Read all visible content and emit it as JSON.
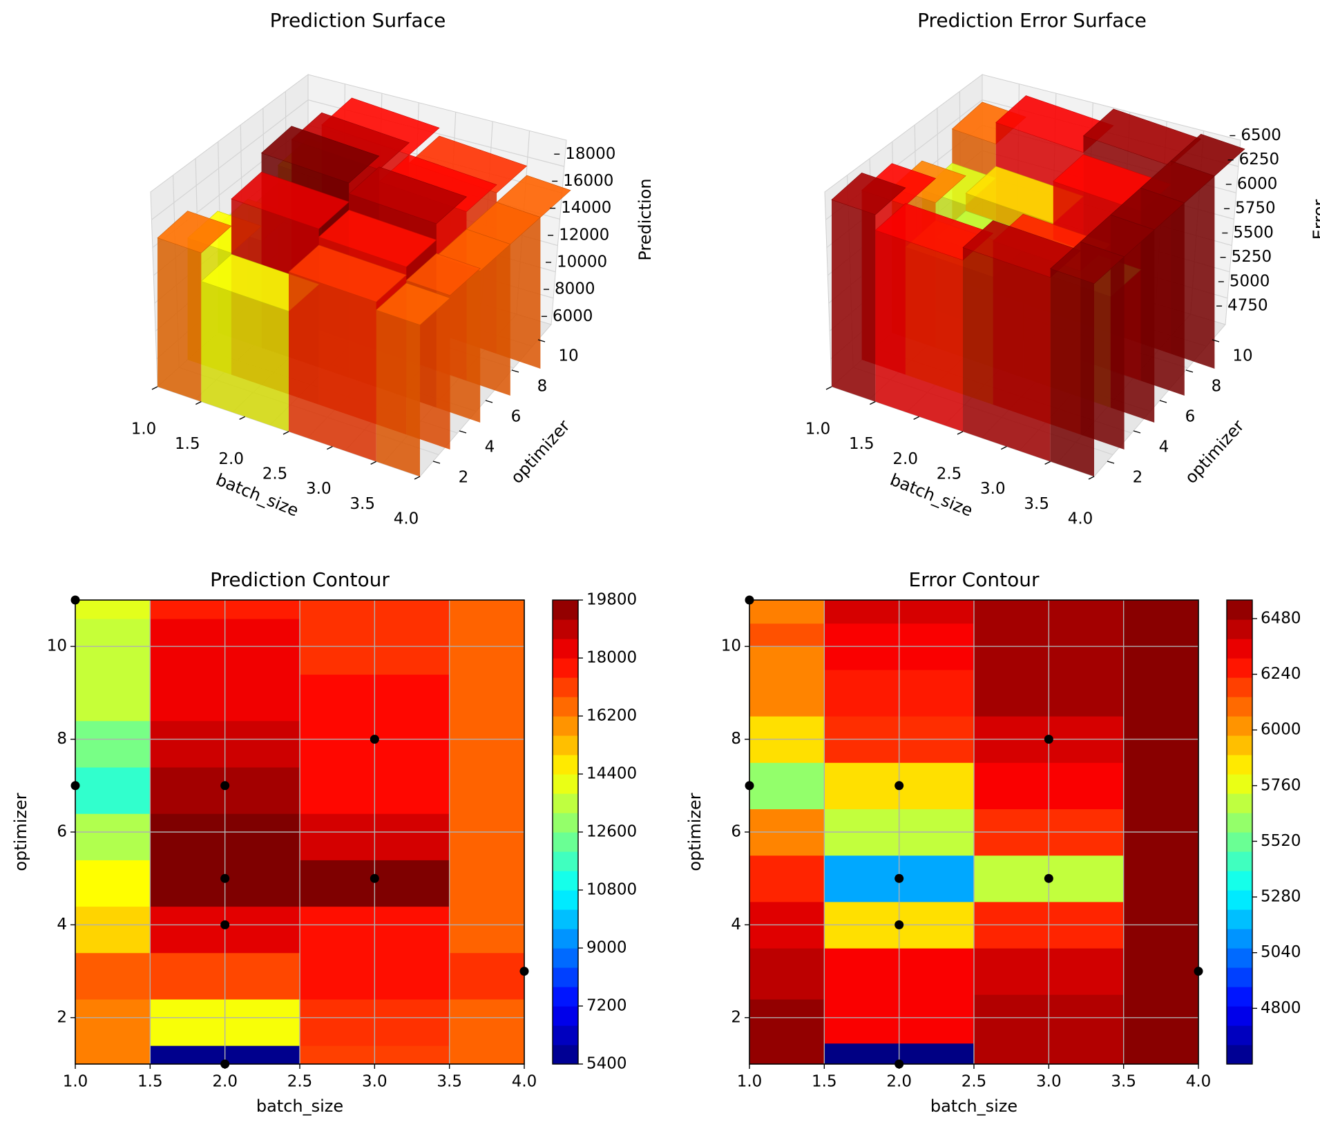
{
  "colormap": [
    "#00007f",
    "#0000ff",
    "#007fff",
    "#00ffff",
    "#7fff7f",
    "#ffff00",
    "#ff7f00",
    "#ff0000",
    "#7f0000"
  ],
  "chart_data": [
    {
      "type": "surface",
      "title": "Prediction Surface",
      "xlabel": "batch_size",
      "ylabel": "optimizer",
      "zlabel": "Prediction",
      "x_ticks": [
        "1.0",
        "1.5",
        "2.0",
        "2.5",
        "3.0",
        "3.5",
        "4.0"
      ],
      "y_ticks": [
        "2",
        "4",
        "6",
        "8",
        "10"
      ],
      "z_ticks": [
        "6000",
        "8000",
        "10000",
        "12000",
        "14000",
        "16000",
        "18000"
      ],
      "xlim": [
        1,
        4
      ],
      "ylim": [
        1,
        11
      ],
      "zlim": [
        5400,
        19800
      ]
    },
    {
      "type": "surface",
      "title": "Prediction Error Surface",
      "xlabel": "batch_size",
      "ylabel": "optimizer",
      "zlabel": "Error",
      "x_ticks": [
        "1.0",
        "1.5",
        "2.0",
        "2.5",
        "3.0",
        "3.5",
        "4.0"
      ],
      "y_ticks": [
        "2",
        "4",
        "6",
        "8",
        "10"
      ],
      "z_ticks": [
        "4750",
        "5000",
        "5250",
        "5500",
        "5750",
        "6000",
        "6250",
        "6500"
      ],
      "xlim": [
        1,
        4
      ],
      "ylim": [
        1,
        11
      ],
      "zlim": [
        4560,
        6560
      ]
    },
    {
      "type": "heatmap",
      "title": "Prediction Contour",
      "xlabel": "batch_size",
      "ylabel": "optimizer",
      "xlim": [
        1,
        4
      ],
      "ylim": [
        1,
        11
      ],
      "x_ticks": [
        "1.0",
        "1.5",
        "2.0",
        "2.5",
        "3.0",
        "3.5",
        "4.0"
      ],
      "y_ticks": [
        "2",
        "4",
        "6",
        "8",
        "10"
      ],
      "colorbar_ticks": [
        "5400",
        "7200",
        "9000",
        "10800",
        "12600",
        "14400",
        "16200",
        "18000",
        "19800"
      ],
      "vmin": 5400,
      "vmax": 19800,
      "columns": [
        {
          "x0": 1.0,
          "x1": 1.5,
          "bands": [
            [
              1,
              2.4,
              16200
            ],
            [
              2.4,
              3.4,
              16700
            ],
            [
              3.4,
              4.4,
              15000
            ],
            [
              4.4,
              5.4,
              14400
            ],
            [
              5.4,
              6.4,
              13300
            ],
            [
              6.4,
              7.4,
              11500
            ],
            [
              7.4,
              8.4,
              12500
            ],
            [
              8.4,
              10.6,
              13600
            ],
            [
              10.6,
              11,
              14000
            ]
          ]
        },
        {
          "x0": 1.5,
          "x1": 2.5,
          "bands": [
            [
              1,
              1.4,
              5600
            ],
            [
              1.4,
              2.4,
              14300
            ],
            [
              2.4,
              3.4,
              17000
            ],
            [
              3.4,
              4.4,
              18400
            ],
            [
              4.4,
              6.4,
              19800
            ],
            [
              6.4,
              7.4,
              19300
            ],
            [
              7.4,
              8.4,
              18700
            ],
            [
              8.4,
              10.6,
              18200
            ],
            [
              10.6,
              11,
              17600
            ]
          ]
        },
        {
          "x0": 2.5,
          "x1": 3.5,
          "bands": [
            [
              1,
              1.4,
              17100
            ],
            [
              1.4,
              2.4,
              17300
            ],
            [
              2.4,
              4.4,
              17800
            ],
            [
              4.4,
              5.4,
              19800
            ],
            [
              5.4,
              6.4,
              18600
            ],
            [
              6.4,
              9.4,
              17900
            ],
            [
              9.4,
              11,
              17300
            ]
          ]
        },
        {
          "x0": 3.5,
          "x1": 4.0,
          "bands": [
            [
              1,
              2.4,
              16600
            ],
            [
              2.4,
              3.4,
              17300
            ],
            [
              3.4,
              11,
              16600
            ]
          ]
        }
      ],
      "points": [
        [
          1,
          11
        ],
        [
          1,
          7
        ],
        [
          2,
          7
        ],
        [
          2,
          5
        ],
        [
          2,
          4
        ],
        [
          2,
          1
        ],
        [
          3,
          8
        ],
        [
          3,
          5
        ],
        [
          4,
          3
        ]
      ]
    },
    {
      "type": "heatmap",
      "title": "Error Contour",
      "xlabel": "batch_size",
      "ylabel": "optimizer",
      "xlim": [
        1,
        4
      ],
      "ylim": [
        1,
        11
      ],
      "x_ticks": [
        "1.0",
        "1.5",
        "2.0",
        "2.5",
        "3.0",
        "3.5",
        "4.0"
      ],
      "y_ticks": [
        "2",
        "4",
        "6",
        "8",
        "10"
      ],
      "colorbar_ticks": [
        "4800",
        "5040",
        "5280",
        "5520",
        "5760",
        "6000",
        "6240",
        "6480"
      ],
      "vmin": 4560,
      "vmax": 6560,
      "columns": [
        {
          "x0": 1.0,
          "x1": 1.5,
          "bands": [
            [
              1,
              2.4,
              6520
            ],
            [
              2.4,
              3.5,
              6440
            ],
            [
              3.5,
              4.5,
              6370
            ],
            [
              4.5,
              5.5,
              6240
            ],
            [
              5.5,
              6.5,
              6050
            ],
            [
              6.5,
              7.5,
              5600
            ],
            [
              7.5,
              8.5,
              5870
            ],
            [
              8.5,
              10,
              6050
            ],
            [
              10,
              10.5,
              6150
            ],
            [
              10.5,
              11,
              6060
            ]
          ]
        },
        {
          "x0": 1.5,
          "x1": 2.5,
          "bands": [
            [
              1,
              1.45,
              4570
            ],
            [
              1.45,
              3.5,
              6320
            ],
            [
              3.5,
              4.5,
              5870
            ],
            [
              4.5,
              5.5,
              5140
            ],
            [
              5.5,
              6.5,
              5690
            ],
            [
              6.5,
              7.5,
              5870
            ],
            [
              7.5,
              8.5,
              6220
            ],
            [
              8.5,
              9.5,
              6260
            ],
            [
              9.5,
              10.5,
              6320
            ],
            [
              10.5,
              11,
              6390
            ]
          ]
        },
        {
          "x0": 2.5,
          "x1": 3.5,
          "bands": [
            [
              1,
              2.5,
              6460
            ],
            [
              2.5,
              3.5,
              6400
            ],
            [
              3.5,
              4.5,
              6240
            ],
            [
              4.5,
              5.5,
              5690
            ],
            [
              5.5,
              6.5,
              6220
            ],
            [
              6.5,
              7.5,
              6320
            ],
            [
              7.5,
              8.5,
              6390
            ],
            [
              8.5,
              11,
              6490
            ]
          ]
        },
        {
          "x0": 3.5,
          "x1": 4.0,
          "bands": [
            [
              1,
              11,
              6540
            ]
          ]
        }
      ],
      "points": [
        [
          1,
          11
        ],
        [
          1,
          7
        ],
        [
          2,
          7
        ],
        [
          2,
          5
        ],
        [
          2,
          4
        ],
        [
          2,
          1
        ],
        [
          3,
          8
        ],
        [
          3,
          5
        ],
        [
          4,
          3
        ]
      ]
    }
  ]
}
